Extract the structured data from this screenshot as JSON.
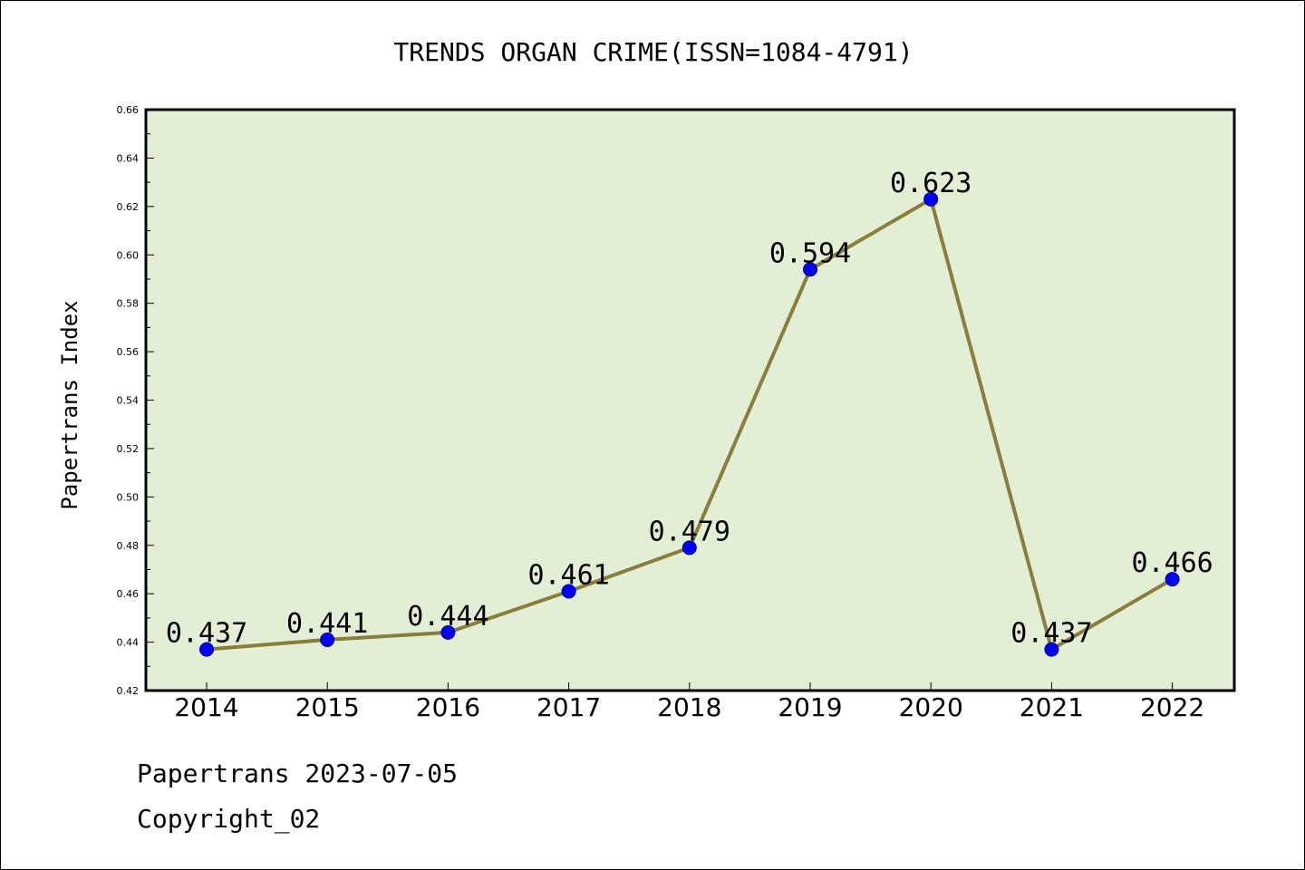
{
  "chart_data": {
    "type": "line",
    "title": "TRENDS ORGAN CRIME(ISSN=1084-4791)",
    "xlabel": "",
    "ylabel": "Papertrans Index",
    "categories": [
      "2014",
      "2015",
      "2016",
      "2017",
      "2018",
      "2019",
      "2020",
      "2021",
      "2022"
    ],
    "series": [
      {
        "values": [
          0.437,
          0.441,
          0.444,
          0.461,
          0.479,
          0.594,
          0.623,
          0.437,
          0.466
        ],
        "labels": [
          "0.437",
          "0.441",
          "0.444",
          "0.461",
          "0.479",
          "0.594",
          "0.623",
          "0.437",
          "0.466"
        ]
      }
    ],
    "ylim": [
      0.42,
      0.66
    ],
    "yticks": [
      "0.42",
      "0.44",
      "0.46",
      "0.48",
      "0.50",
      "0.52",
      "0.54",
      "0.56",
      "0.58",
      "0.60",
      "0.62",
      "0.64",
      "0.66"
    ],
    "grid": false,
    "legend": "none",
    "colors": {
      "plot_background": "#e2efd4",
      "line": "#8b7d3a",
      "marker": "#0000ff"
    }
  },
  "footer": {
    "date_text": "Papertrans 2023-07-05",
    "copyright_text": "Copyright_02"
  }
}
